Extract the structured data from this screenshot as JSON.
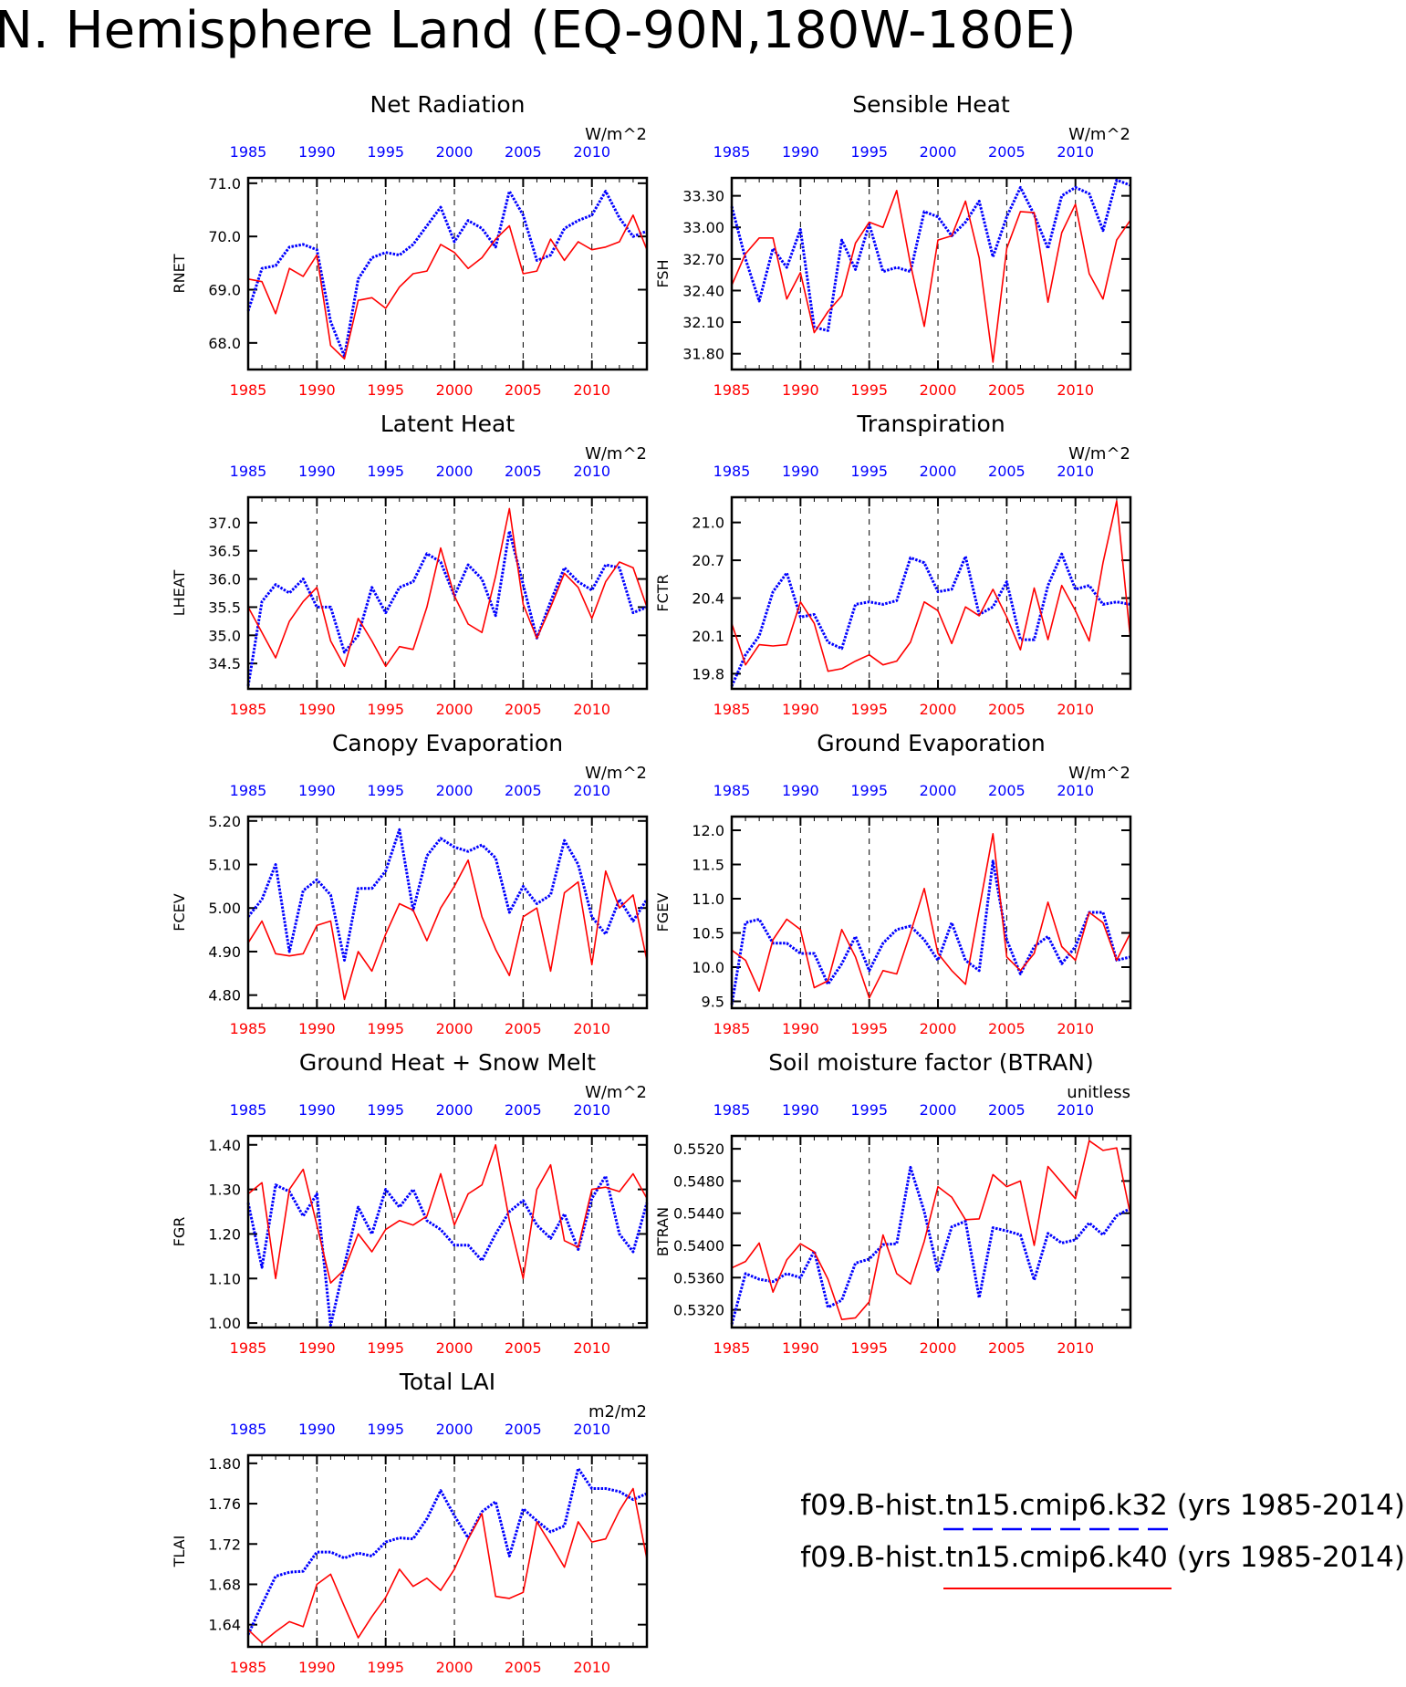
{
  "figure": {
    "title": "N. Hemisphere Land (EQ-90N,180W-180E)",
    "colors": {
      "k32": "#0000ff",
      "k40": "#ff0000",
      "axis": "#000000",
      "grid": "#000000"
    }
  },
  "legend": {
    "entries": [
      {
        "label": "f09.B-hist.tn15.cmip6.k32 (yrs 1985-2014)",
        "color": "#0000ff",
        "style": "dashed"
      },
      {
        "label": "f09.B-hist.tn15.cmip6.k40 (yrs 1985-2014)",
        "color": "#ff0000",
        "style": "solid"
      }
    ]
  },
  "chart_data": [
    {
      "type": "line",
      "title": "Net Radiation",
      "ylabel": "RNET",
      "units": "W/m^2",
      "xlim": [
        1985,
        2014
      ],
      "xticks": [
        "1985",
        "1990",
        "1995",
        "2000",
        "2005",
        "2010"
      ],
      "ylim": [
        67.5,
        71.1
      ],
      "yticks": [
        "68.0",
        "69.0",
        "70.0",
        "71.0"
      ],
      "series": [
        {
          "values": [
            68.6,
            69.4,
            69.45,
            69.8,
            69.85,
            69.75,
            68.4,
            67.75,
            69.2,
            69.6,
            69.7,
            69.65,
            69.85,
            70.2,
            70.55,
            69.9,
            70.3,
            70.15,
            69.8,
            70.85,
            70.4,
            69.55,
            69.65,
            70.15,
            70.3,
            70.4,
            70.85,
            70.35,
            70.0,
            70.1
          ]
        },
        {
          "values": [
            69.2,
            69.15,
            68.55,
            69.4,
            69.25,
            69.65,
            67.95,
            67.7,
            68.8,
            68.85,
            68.65,
            69.05,
            69.3,
            69.35,
            69.85,
            69.7,
            69.4,
            69.6,
            69.95,
            70.2,
            69.3,
            69.35,
            69.95,
            69.55,
            69.9,
            69.75,
            69.8,
            69.9,
            70.4,
            69.75
          ]
        }
      ]
    },
    {
      "type": "line",
      "title": "Sensible Heat",
      "ylabel": "FSH",
      "units": "W/m^2",
      "xlim": [
        1985,
        2014
      ],
      "xticks": [
        "1985",
        "1990",
        "1995",
        "2000",
        "2005",
        "2010"
      ],
      "ylim": [
        31.65,
        33.47
      ],
      "yticks": [
        "31.80",
        "32.10",
        "32.40",
        "32.70",
        "33.00",
        "33.30"
      ],
      "series": [
        {
          "values": [
            33.2,
            32.7,
            32.3,
            32.8,
            32.62,
            32.98,
            32.05,
            32.02,
            32.88,
            32.6,
            33.03,
            32.58,
            32.62,
            32.58,
            33.15,
            33.1,
            32.92,
            33.05,
            33.25,
            32.72,
            33.1,
            33.38,
            33.12,
            32.8,
            33.3,
            33.38,
            33.32,
            32.97,
            33.45,
            33.4
          ]
        },
        {
          "values": [
            32.45,
            32.75,
            32.9,
            32.9,
            32.32,
            32.57,
            32.0,
            32.2,
            32.35,
            32.85,
            33.05,
            33.0,
            33.35,
            32.65,
            32.06,
            32.88,
            32.92,
            33.25,
            32.71,
            31.72,
            32.8,
            33.15,
            33.14,
            32.29,
            32.95,
            33.22,
            32.56,
            32.32,
            32.88,
            33.07
          ]
        }
      ]
    },
    {
      "type": "line",
      "title": "Latent Heat",
      "ylabel": "LHEAT",
      "units": "W/m^2",
      "xlim": [
        1985,
        2014
      ],
      "xticks": [
        "1985",
        "1990",
        "1995",
        "2000",
        "2005",
        "2010"
      ],
      "ylim": [
        34.05,
        37.45
      ],
      "yticks": [
        "34.5",
        "35.0",
        "35.5",
        "36.0",
        "36.5",
        "37.0"
      ],
      "series": [
        {
          "values": [
            34.1,
            35.6,
            35.9,
            35.75,
            36.0,
            35.5,
            35.5,
            34.7,
            35.0,
            35.85,
            35.4,
            35.85,
            35.95,
            36.45,
            36.3,
            35.7,
            36.25,
            36.0,
            35.35,
            36.85,
            35.9,
            34.95,
            35.6,
            36.2,
            35.95,
            35.8,
            36.25,
            36.2,
            35.4,
            35.5
          ]
        },
        {
          "values": [
            35.5,
            35.05,
            34.6,
            35.25,
            35.6,
            35.85,
            34.9,
            34.45,
            35.3,
            34.9,
            34.45,
            34.8,
            34.75,
            35.5,
            36.55,
            35.7,
            35.2,
            35.05,
            36.05,
            37.25,
            35.55,
            34.95,
            35.5,
            36.1,
            35.85,
            35.3,
            35.95,
            36.3,
            36.2,
            35.5
          ]
        }
      ]
    },
    {
      "type": "line",
      "title": "Transpiration",
      "ylabel": "FCTR",
      "units": "W/m^2",
      "xlim": [
        1985,
        2014
      ],
      "xticks": [
        "1985",
        "1990",
        "1995",
        "2000",
        "2005",
        "2010"
      ],
      "ylim": [
        19.68,
        21.2
      ],
      "yticks": [
        "19.8",
        "20.1",
        "20.4",
        "20.7",
        "21.0"
      ],
      "series": [
        {
          "values": [
            19.7,
            19.95,
            20.1,
            20.45,
            20.6,
            20.25,
            20.27,
            20.05,
            20.0,
            20.35,
            20.37,
            20.35,
            20.38,
            20.72,
            20.68,
            20.45,
            20.47,
            20.73,
            20.27,
            20.33,
            20.53,
            20.07,
            20.07,
            20.5,
            20.75,
            20.47,
            20.5,
            20.35,
            20.37,
            20.35
          ]
        },
        {
          "values": [
            20.2,
            19.87,
            20.03,
            20.02,
            20.03,
            20.37,
            20.2,
            19.82,
            19.84,
            19.9,
            19.95,
            19.87,
            19.9,
            20.05,
            20.37,
            20.3,
            20.04,
            20.33,
            20.26,
            20.47,
            20.25,
            19.99,
            20.48,
            20.07,
            20.5,
            20.3,
            20.06,
            20.68,
            21.17,
            20.07
          ]
        }
      ]
    },
    {
      "type": "line",
      "title": "Canopy Evaporation",
      "ylabel": "FCEV",
      "units": "W/m^2",
      "xlim": [
        1985,
        2014
      ],
      "xticks": [
        "1985",
        "1990",
        "1995",
        "2000",
        "2005",
        "2010"
      ],
      "ylim": [
        4.77,
        5.21
      ],
      "yticks": [
        "4.80",
        "4.90",
        "5.00",
        "5.10",
        "5.20"
      ],
      "series": [
        {
          "values": [
            4.98,
            5.02,
            5.1,
            4.9,
            5.04,
            5.065,
            5.03,
            4.88,
            5.045,
            5.045,
            5.085,
            5.18,
            4.995,
            5.12,
            5.16,
            5.14,
            5.13,
            5.145,
            5.115,
            4.99,
            5.05,
            5.01,
            5.03,
            5.155,
            5.1,
            4.98,
            4.94,
            5.02,
            4.97,
            5.02
          ]
        },
        {
          "values": [
            4.92,
            4.97,
            4.895,
            4.89,
            4.895,
            4.96,
            4.97,
            4.79,
            4.9,
            4.855,
            4.94,
            5.01,
            4.995,
            4.925,
            5.0,
            5.05,
            5.11,
            4.98,
            4.905,
            4.845,
            4.98,
            5.0,
            4.855,
            5.035,
            5.06,
            4.87,
            5.085,
            5.0,
            5.03,
            4.88
          ]
        }
      ]
    },
    {
      "type": "line",
      "title": "Ground Evaporation",
      "ylabel": "FGEV",
      "units": "W/m^2",
      "xlim": [
        1985,
        2014
      ],
      "xticks": [
        "1985",
        "1990",
        "1995",
        "2000",
        "2005",
        "2010"
      ],
      "ylim": [
        9.4,
        12.2
      ],
      "yticks": [
        "9.5",
        "10.0",
        "10.5",
        "11.0",
        "11.5",
        "12.0"
      ],
      "series": [
        {
          "values": [
            9.45,
            10.65,
            10.7,
            10.35,
            10.35,
            10.2,
            10.2,
            9.75,
            10.05,
            10.45,
            9.95,
            10.35,
            10.55,
            10.6,
            10.4,
            10.1,
            10.65,
            10.1,
            9.95,
            11.55,
            10.4,
            9.9,
            10.3,
            10.45,
            10.05,
            10.3,
            10.8,
            10.8,
            10.1,
            10.15
          ]
        },
        {
          "values": [
            10.25,
            10.1,
            9.65,
            10.4,
            10.7,
            10.55,
            9.7,
            9.8,
            10.55,
            10.15,
            9.55,
            9.95,
            9.9,
            10.5,
            11.15,
            10.2,
            9.95,
            9.75,
            10.85,
            11.95,
            10.15,
            9.95,
            10.2,
            10.95,
            10.3,
            10.1,
            10.8,
            10.65,
            10.1,
            10.5
          ]
        }
      ]
    },
    {
      "type": "line",
      "title": "Ground Heat + Snow Melt",
      "ylabel": "FGR",
      "units": "W/m^2",
      "xlim": [
        1985,
        2014
      ],
      "xticks": [
        "1985",
        "1990",
        "1995",
        "2000",
        "2005",
        "2010"
      ],
      "ylim": [
        0.99,
        1.42
      ],
      "yticks": [
        "1.00",
        "1.10",
        "1.20",
        "1.30",
        "1.40"
      ],
      "series": [
        {
          "values": [
            1.27,
            1.125,
            1.31,
            1.295,
            1.24,
            1.29,
            0.995,
            1.13,
            1.26,
            1.2,
            1.3,
            1.26,
            1.3,
            1.23,
            1.21,
            1.175,
            1.175,
            1.14,
            1.2,
            1.25,
            1.275,
            1.22,
            1.19,
            1.245,
            1.165,
            1.28,
            1.33,
            1.2,
            1.16,
            1.27
          ]
        },
        {
          "values": [
            1.29,
            1.315,
            1.1,
            1.3,
            1.345,
            1.22,
            1.09,
            1.12,
            1.2,
            1.16,
            1.21,
            1.23,
            1.22,
            1.24,
            1.335,
            1.22,
            1.29,
            1.31,
            1.4,
            1.23,
            1.1,
            1.3,
            1.355,
            1.185,
            1.17,
            1.3,
            1.305,
            1.295,
            1.335,
            1.28
          ]
        }
      ]
    },
    {
      "type": "line",
      "title": "Soil moisture factor (BTRAN)",
      "ylabel": "BTRAN",
      "units": "unitless",
      "xlim": [
        1985,
        2014
      ],
      "xticks": [
        "1985",
        "1990",
        "1995",
        "2000",
        "2005",
        "2010"
      ],
      "ylim": [
        0.5298,
        0.5536
      ],
      "yticks": [
        "0.5320",
        "0.5360",
        "0.5400",
        "0.5440",
        "0.5480",
        "0.5520"
      ],
      "series": [
        {
          "values": [
            0.5302,
            0.5365,
            0.5358,
            0.5355,
            0.5365,
            0.536,
            0.5393,
            0.5323,
            0.5332,
            0.5378,
            0.5383,
            0.5401,
            0.5402,
            0.5497,
            0.5442,
            0.5368,
            0.5423,
            0.543,
            0.5335,
            0.5422,
            0.5418,
            0.5413,
            0.5357,
            0.5415,
            0.5403,
            0.5407,
            0.5428,
            0.5413,
            0.5437,
            0.5446
          ]
        },
        {
          "values": [
            0.5372,
            0.538,
            0.5403,
            0.5342,
            0.5382,
            0.5402,
            0.5392,
            0.5358,
            0.5308,
            0.531,
            0.533,
            0.5413,
            0.5365,
            0.5352,
            0.5405,
            0.5473,
            0.546,
            0.5432,
            0.5433,
            0.5488,
            0.5473,
            0.548,
            0.54,
            0.5498,
            0.5478,
            0.5458,
            0.553,
            0.5518,
            0.5521,
            0.5438
          ]
        }
      ]
    },
    {
      "type": "line",
      "title": "Total LAI",
      "ylabel": "TLAI",
      "units": "m2/m2",
      "xlim": [
        1985,
        2014
      ],
      "xticks": [
        "1985",
        "1990",
        "1995",
        "2000",
        "2005",
        "2010"
      ],
      "ylim": [
        1.618,
        1.808
      ],
      "yticks": [
        "1.64",
        "1.68",
        "1.72",
        "1.76",
        "1.80"
      ],
      "series": [
        {
          "values": [
            1.63,
            1.66,
            1.688,
            1.692,
            1.693,
            1.712,
            1.712,
            1.706,
            1.711,
            1.708,
            1.722,
            1.726,
            1.725,
            1.745,
            1.773,
            1.748,
            1.726,
            1.752,
            1.762,
            1.708,
            1.755,
            1.743,
            1.732,
            1.738,
            1.795,
            1.775,
            1.775,
            1.772,
            1.764,
            1.77
          ]
        },
        {
          "values": [
            1.635,
            1.622,
            1.633,
            1.643,
            1.638,
            1.68,
            1.69,
            1.658,
            1.627,
            1.648,
            1.667,
            1.695,
            1.678,
            1.686,
            1.674,
            1.695,
            1.725,
            1.75,
            1.668,
            1.666,
            1.672,
            1.742,
            1.72,
            1.697,
            1.742,
            1.722,
            1.725,
            1.753,
            1.775,
            1.705
          ]
        }
      ]
    }
  ]
}
